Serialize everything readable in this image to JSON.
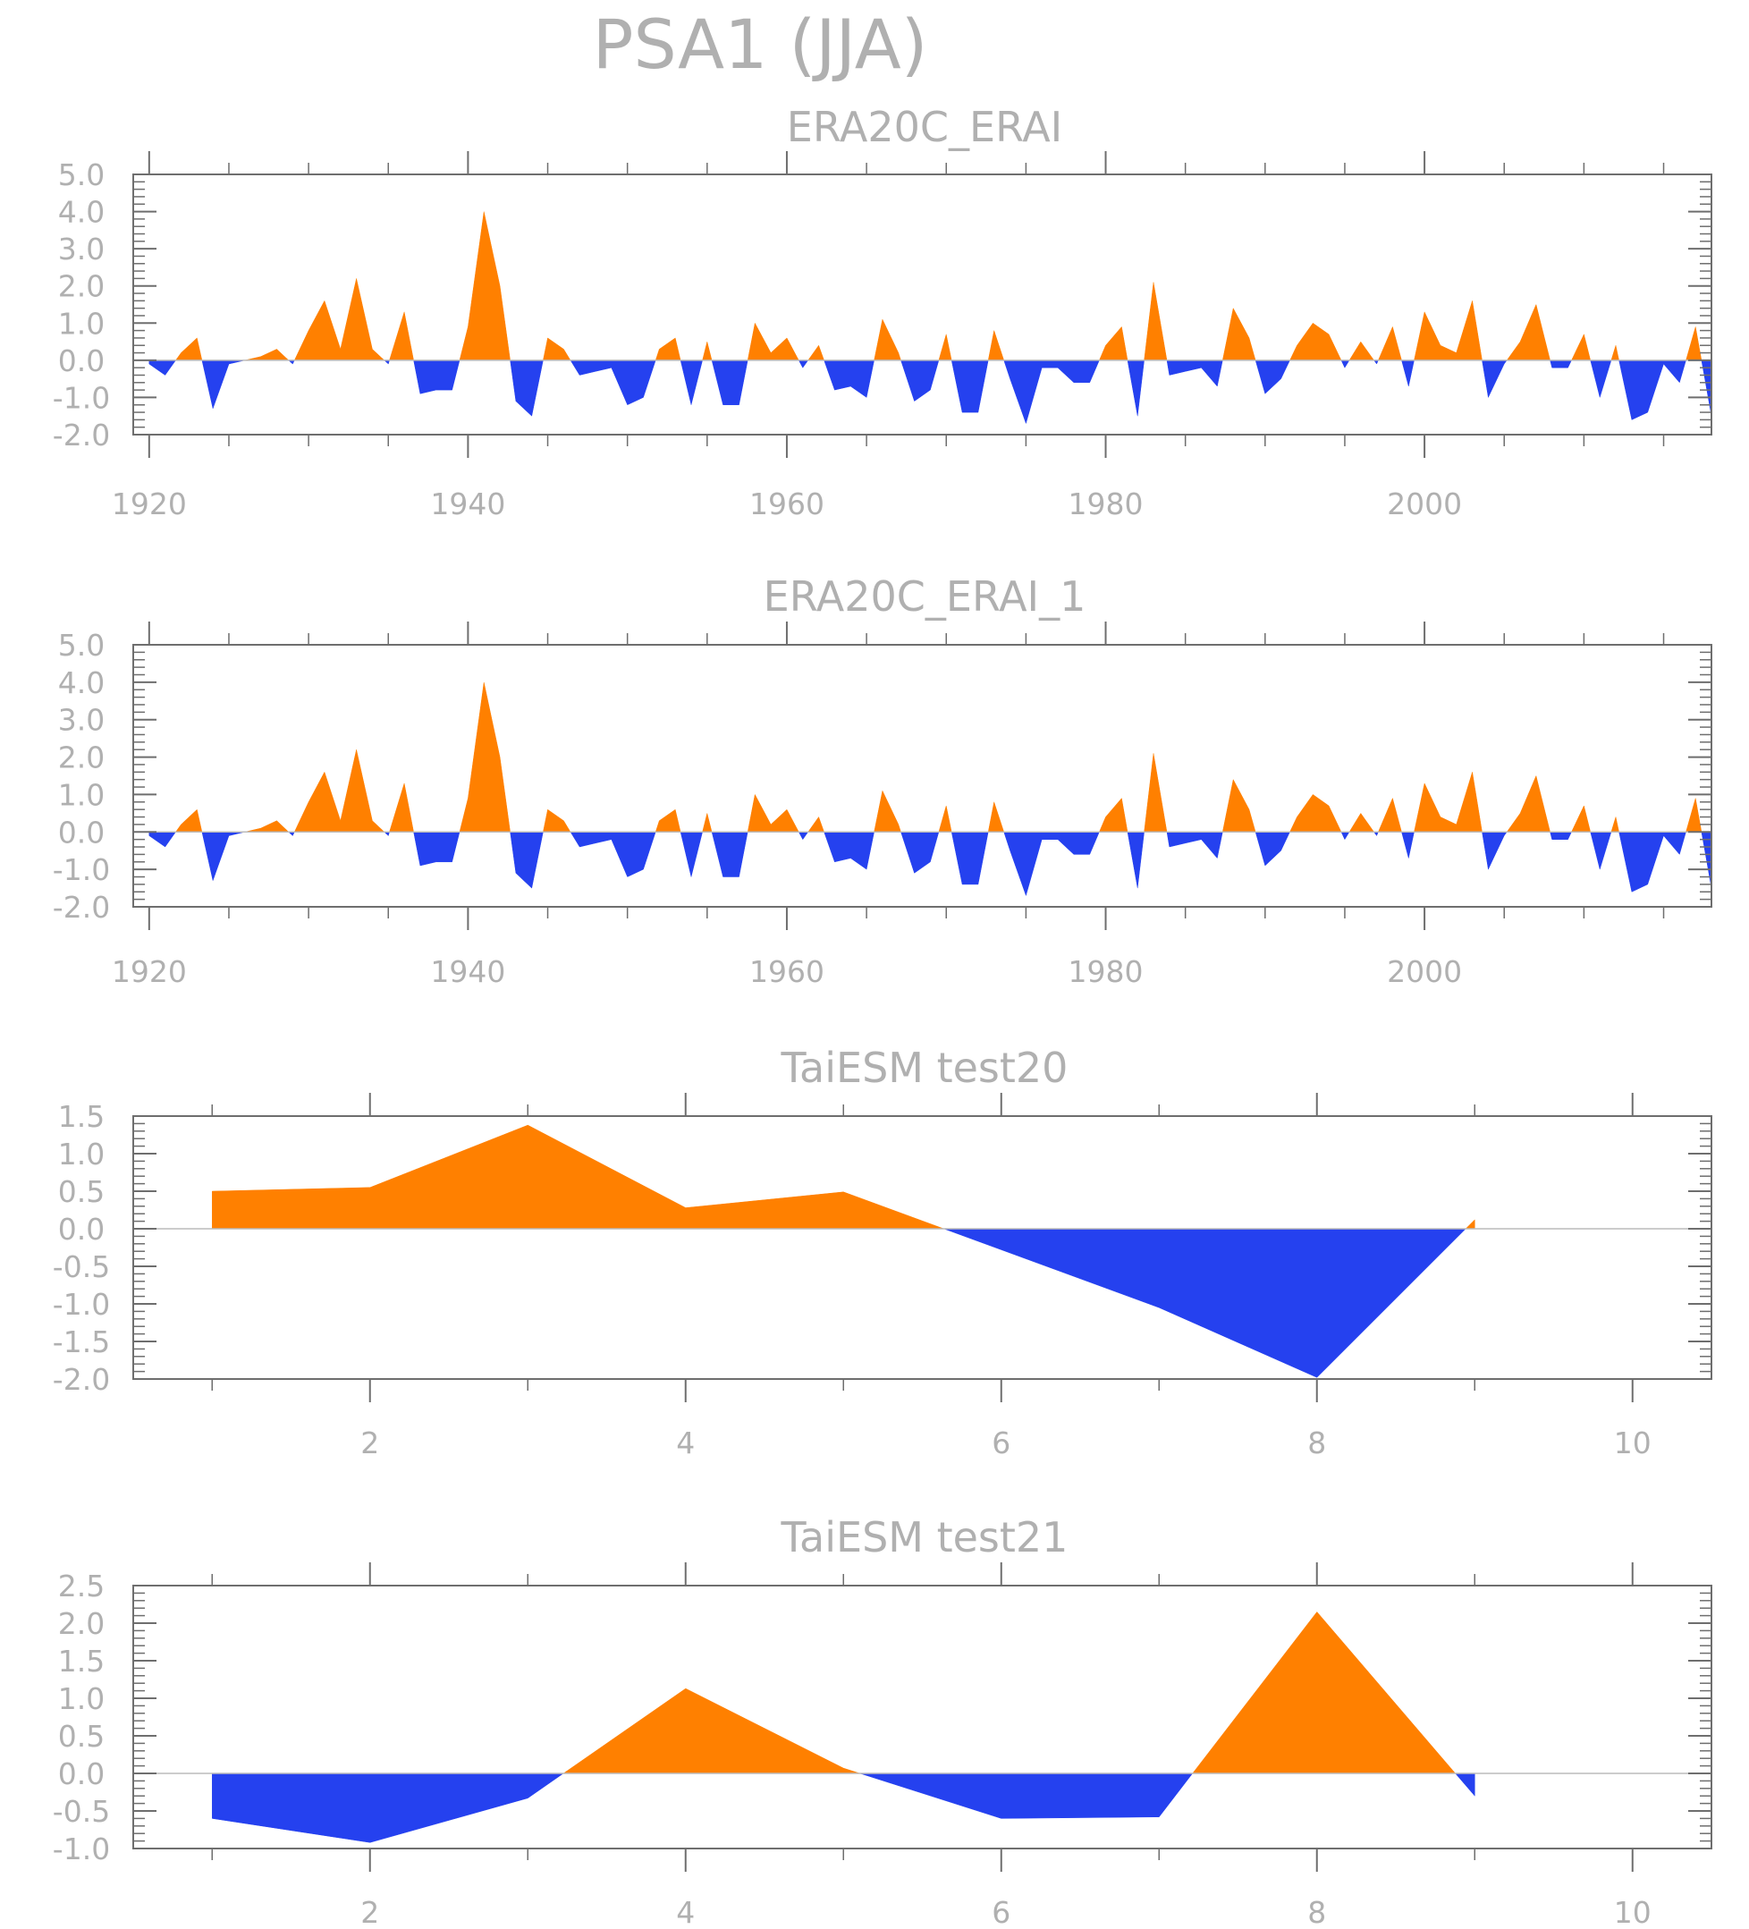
{
  "page": {
    "title": "PSA1 (JJA)"
  },
  "colors": {
    "positive": "#ff8000",
    "negative": "#2541ef",
    "axis": "#6e6e6e",
    "text": "#b0b0b0",
    "zero_line": "#bbbbbb"
  },
  "chart_data": [
    {
      "type": "area",
      "title": "ERA20C_ERAI",
      "xlim": [
        1919,
        2018
      ],
      "ylim": [
        -2.0,
        5.0
      ],
      "yticks": [
        "5.0",
        "4.0",
        "3.0",
        "2.0",
        "1.0",
        "0.0",
        "-1.0",
        "-2.0"
      ],
      "xticks": [
        "1920",
        "1940",
        "1960",
        "1980",
        "2000"
      ],
      "x_start": 1920,
      "values": [
        -0.1,
        -0.4,
        0.2,
        0.6,
        -1.3,
        -0.1,
        0.0,
        0.1,
        0.3,
        -0.1,
        0.8,
        1.6,
        0.3,
        2.2,
        0.3,
        -0.1,
        1.3,
        -0.9,
        -0.8,
        -0.8,
        0.9,
        4.0,
        2.0,
        -1.1,
        -1.5,
        0.6,
        0.3,
        -0.4,
        -0.3,
        -0.2,
        -1.2,
        -1.0,
        0.3,
        0.6,
        -1.2,
        0.5,
        -1.2,
        -1.2,
        1.0,
        0.2,
        0.6,
        -0.2,
        0.4,
        -0.8,
        -0.7,
        -1.0,
        1.1,
        0.2,
        -1.1,
        -0.8,
        0.7,
        -1.4,
        -1.4,
        0.8,
        -0.5,
        -1.7,
        -0.2,
        -0.2,
        -0.6,
        -0.6,
        0.4,
        0.9,
        -1.5,
        2.1,
        -0.4,
        -0.3,
        -0.2,
        -0.7,
        1.4,
        0.6,
        -0.9,
        -0.5,
        0.4,
        1.0,
        0.7,
        -0.2,
        0.5,
        -0.1,
        0.9,
        -0.7,
        1.3,
        0.4,
        0.2,
        1.6,
        -1.0,
        -0.1,
        0.5,
        1.5,
        -0.2,
        -0.2,
        0.7,
        -1.0,
        0.4,
        -1.6,
        -1.4,
        -0.1,
        -0.6,
        0.9,
        -1.5
      ]
    },
    {
      "type": "area",
      "title": "ERA20C_ERAI_1",
      "xlim": [
        1919,
        2018
      ],
      "ylim": [
        -2.0,
        5.0
      ],
      "yticks": [
        "5.0",
        "4.0",
        "3.0",
        "2.0",
        "1.0",
        "0.0",
        "-1.0",
        "-2.0"
      ],
      "xticks": [
        "1920",
        "1940",
        "1960",
        "1980",
        "2000"
      ],
      "x_start": 1920,
      "values": [
        -0.1,
        -0.4,
        0.2,
        0.6,
        -1.3,
        -0.1,
        0.0,
        0.1,
        0.3,
        -0.1,
        0.8,
        1.6,
        0.3,
        2.2,
        0.3,
        -0.1,
        1.3,
        -0.9,
        -0.8,
        -0.8,
        0.9,
        4.0,
        2.0,
        -1.1,
        -1.5,
        0.6,
        0.3,
        -0.4,
        -0.3,
        -0.2,
        -1.2,
        -1.0,
        0.3,
        0.6,
        -1.2,
        0.5,
        -1.2,
        -1.2,
        1.0,
        0.2,
        0.6,
        -0.2,
        0.4,
        -0.8,
        -0.7,
        -1.0,
        1.1,
        0.2,
        -1.1,
        -0.8,
        0.7,
        -1.4,
        -1.4,
        0.8,
        -0.5,
        -1.7,
        -0.2,
        -0.2,
        -0.6,
        -0.6,
        0.4,
        0.9,
        -1.5,
        2.1,
        -0.4,
        -0.3,
        -0.2,
        -0.7,
        1.4,
        0.6,
        -0.9,
        -0.5,
        0.4,
        1.0,
        0.7,
        -0.2,
        0.5,
        -0.1,
        0.9,
        -0.7,
        1.3,
        0.4,
        0.2,
        1.6,
        -1.0,
        -0.1,
        0.5,
        1.5,
        -0.2,
        -0.2,
        0.7,
        -1.0,
        0.4,
        -1.6,
        -1.4,
        -0.1,
        -0.6,
        0.9,
        -1.5
      ]
    },
    {
      "type": "area",
      "title": "TaiESM test20",
      "xlim": [
        0.5,
        10.5
      ],
      "ylim": [
        -2.0,
        1.5
      ],
      "yticks": [
        "1.5",
        "1.0",
        "0.5",
        "0.0",
        "-0.5",
        "-1.0",
        "-1.5",
        "-2.0"
      ],
      "xticks": [
        "2",
        "4",
        "6",
        "8",
        "10"
      ],
      "x_start": 1,
      "values": [
        0.5,
        0.55,
        1.38,
        0.28,
        0.49,
        -0.28,
        -1.05,
        -1.98,
        0.12
      ]
    },
    {
      "type": "area",
      "title": "TaiESM test21",
      "xlim": [
        0.5,
        10.5
      ],
      "ylim": [
        -1.0,
        2.5
      ],
      "yticks": [
        "2.5",
        "2.0",
        "1.5",
        "1.0",
        "0.5",
        "0.0",
        "-0.5",
        "-1.0"
      ],
      "xticks": [
        "2",
        "4",
        "6",
        "8",
        "10"
      ],
      "x_start": 1,
      "values": [
        -0.6,
        -0.92,
        -0.33,
        1.13,
        0.07,
        -0.6,
        -0.58,
        2.15,
        -0.3
      ]
    }
  ]
}
